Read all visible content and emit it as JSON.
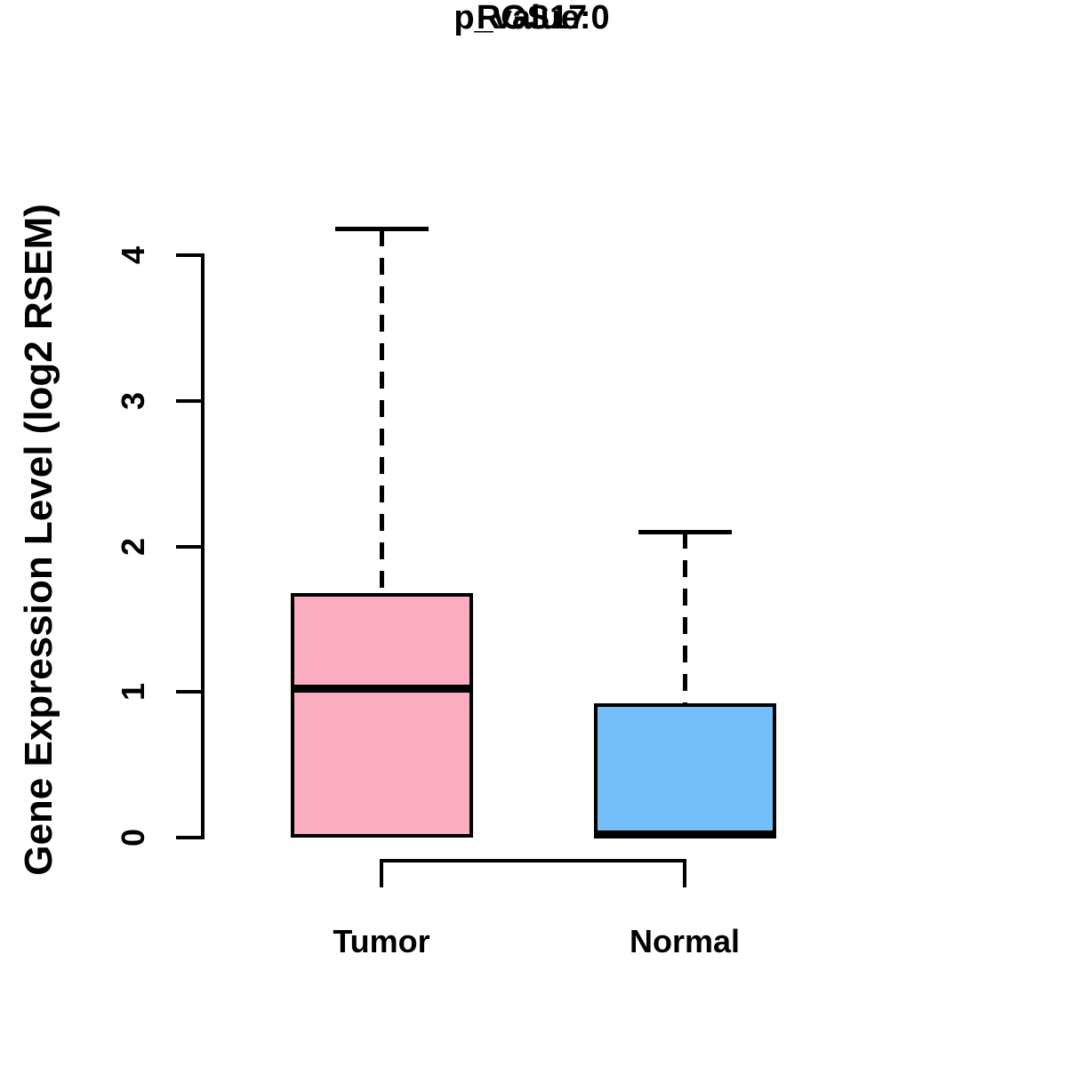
{
  "title": "RGS17",
  "subtitle": "p_value:0",
  "y_axis": {
    "label": "Gene Expression Level (log2 RSEM)",
    "ticks": [
      "0",
      "1",
      "2",
      "3",
      "4"
    ]
  },
  "x_axis": {
    "labels": [
      "Tumor",
      "Normal"
    ]
  },
  "colors": {
    "tumor_fill": "#FBAEC2",
    "normal_fill": "#74BFF8",
    "line": "#000000",
    "background": "#FFFFFF"
  },
  "chart_data": {
    "type": "boxplot",
    "title": "RGS17",
    "subtitle": "p_value:0",
    "ylabel": "Gene Expression Level (log2 RSEM)",
    "xlabel": "",
    "categories": [
      "Tumor",
      "Normal"
    ],
    "series": [
      {
        "name": "Tumor",
        "whisker_low": 0,
        "q1": 0,
        "median": 1.02,
        "q3": 1.68,
        "whisker_high": 4.18,
        "fill": "#FBAEC2"
      },
      {
        "name": "Normal",
        "whisker_low": 0,
        "q1": 0,
        "median": 0.02,
        "q3": 0.92,
        "whisker_high": 2.1,
        "fill": "#74BFF8"
      }
    ],
    "yticks": [
      0,
      1,
      2,
      3,
      4
    ],
    "ylim": [
      0,
      4.2
    ],
    "grid": false,
    "legend": "none",
    "whisker_style": "dashed",
    "comparison_bracket": {
      "between": [
        "Tumor",
        "Normal"
      ],
      "position": "below-axis"
    }
  }
}
